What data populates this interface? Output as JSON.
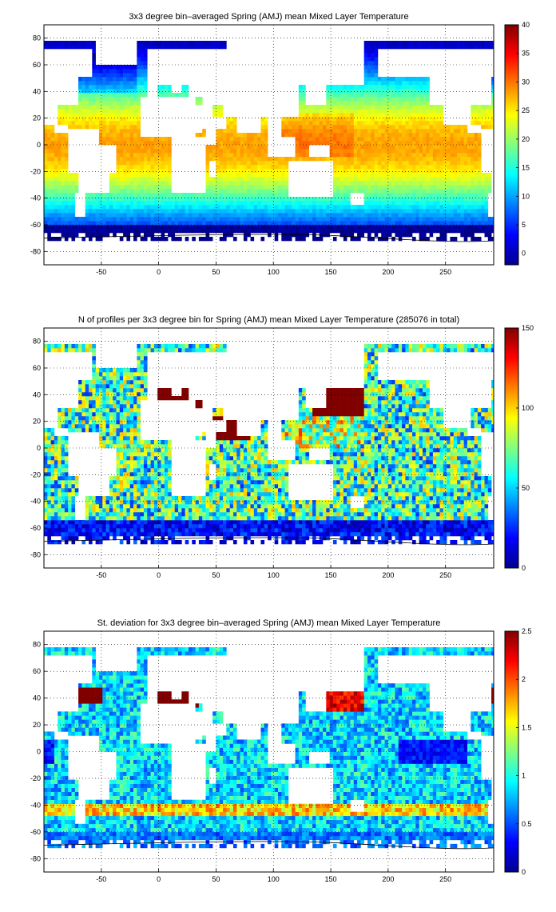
{
  "figure": {
    "colormap": "jet",
    "map_background": "#ffffff",
    "coastline_color": "#000000",
    "grid": "dotted",
    "colorbar_position": "right"
  },
  "chart_data": [
    {
      "type": "heatmap",
      "title": "3x3 degree bin–averaged Spring (AMJ) mean Mixed Layer Temperature",
      "xlabel": "",
      "ylabel": "",
      "xlim": [
        -100,
        292
      ],
      "ylim": [
        -90,
        90
      ],
      "x_ticks": [
        -50,
        0,
        50,
        100,
        150,
        200,
        250
      ],
      "y_ticks": [
        80,
        60,
        40,
        20,
        0,
        -20,
        -40,
        -60,
        -80
      ],
      "bin_size_deg": 3,
      "colorbar": {
        "min": -2,
        "max": 40,
        "ticks": [
          40,
          35,
          30,
          25,
          20,
          15,
          10,
          5,
          0
        ]
      },
      "field": "temperature"
    },
    {
      "type": "heatmap",
      "title": "N of profiles per 3x3 degree bin for Spring (AMJ) mean Mixed Layer Temperature  (285076 in total)",
      "xlabel": "",
      "ylabel": "",
      "xlim": [
        -100,
        292
      ],
      "ylim": [
        -90,
        90
      ],
      "x_ticks": [
        -50,
        0,
        50,
        100,
        150,
        200,
        250
      ],
      "y_ticks": [
        80,
        60,
        40,
        20,
        0,
        -20,
        -40,
        -60,
        -80
      ],
      "bin_size_deg": 3,
      "total_profiles": 285076,
      "colorbar": {
        "min": 0,
        "max": 150,
        "ticks": [
          150,
          100,
          50,
          0
        ]
      },
      "field": "count"
    },
    {
      "type": "heatmap",
      "title": "St. deviation for 3x3 degree bin–averaged Spring (AMJ) mean Mixed Layer Temperature",
      "xlabel": "",
      "ylabel": "",
      "xlim": [
        -100,
        292
      ],
      "ylim": [
        -90,
        90
      ],
      "x_ticks": [
        -50,
        0,
        50,
        100,
        150,
        200,
        250
      ],
      "y_ticks": [
        80,
        60,
        40,
        20,
        0,
        -20,
        -40,
        -60,
        -80
      ],
      "bin_size_deg": 3,
      "colorbar": {
        "min": 0,
        "max": 2.5,
        "ticks": [
          2.5,
          2,
          1.5,
          1,
          0.5,
          0
        ]
      },
      "field": "stdev"
    }
  ]
}
